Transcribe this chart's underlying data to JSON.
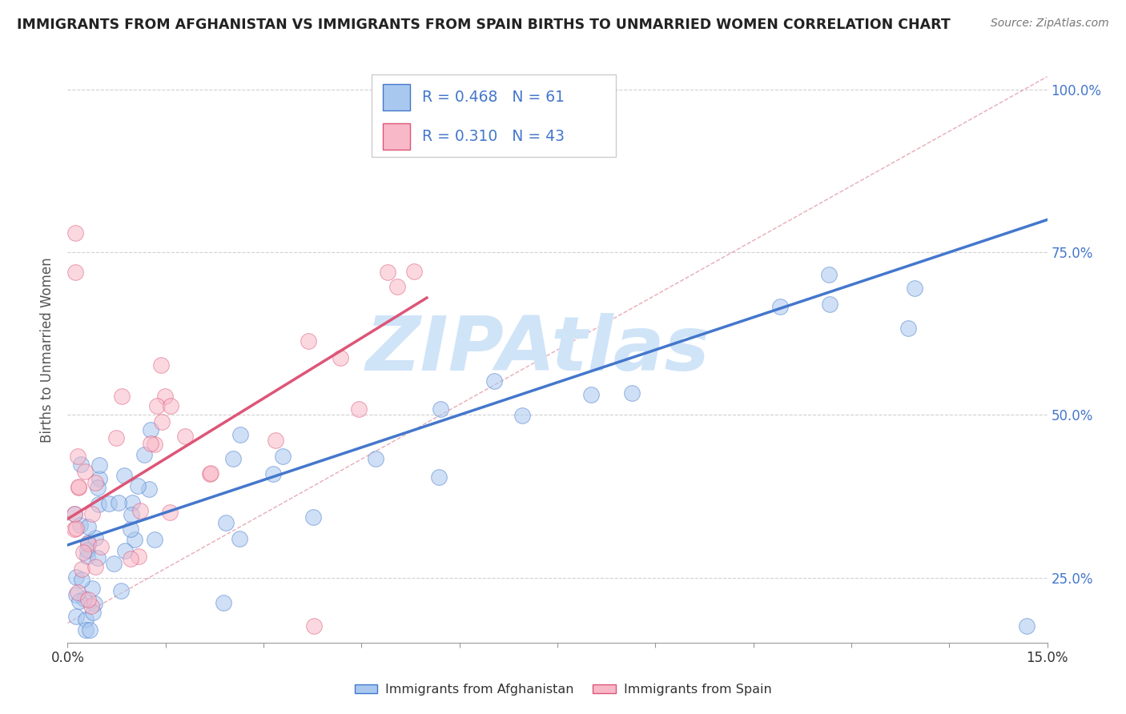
{
  "title": "IMMIGRANTS FROM AFGHANISTAN VS IMMIGRANTS FROM SPAIN BIRTHS TO UNMARRIED WOMEN CORRELATION CHART",
  "source": "Source: ZipAtlas.com",
  "ylabel": "Births to Unmarried Women",
  "legend_label1": "Immigrants from Afghanistan",
  "legend_label2": "Immigrants from Spain",
  "R1": 0.468,
  "N1": 61,
  "R2": 0.31,
  "N2": 43,
  "color1": "#A8C8F0",
  "color2": "#F8B8C8",
  "line_color1": "#4477CC",
  "line_color2": "#DD5577",
  "ref_line_color": "#DD8899",
  "watermark": "ZIPAtlas",
  "watermark_color": "#D0E4F8",
  "xmin": 0.0,
  "xmax": 0.15,
  "ymin": 0.15,
  "ymax": 1.05,
  "yticks": [
    0.25,
    0.5,
    0.75,
    1.0
  ],
  "ytick_labels": [
    "25.0%",
    "50.0%",
    "75.0%",
    "100.0%"
  ],
  "bg_color": "#FFFFFF",
  "grid_color": "#CCCCCC",
  "blue_line_y0": 0.3,
  "blue_line_y1": 0.8,
  "pink_line_y0": 0.34,
  "pink_line_y1": 0.68,
  "pink_line_x1": 0.055,
  "ref_line_y0": 0.18,
  "ref_line_y1": 1.02
}
